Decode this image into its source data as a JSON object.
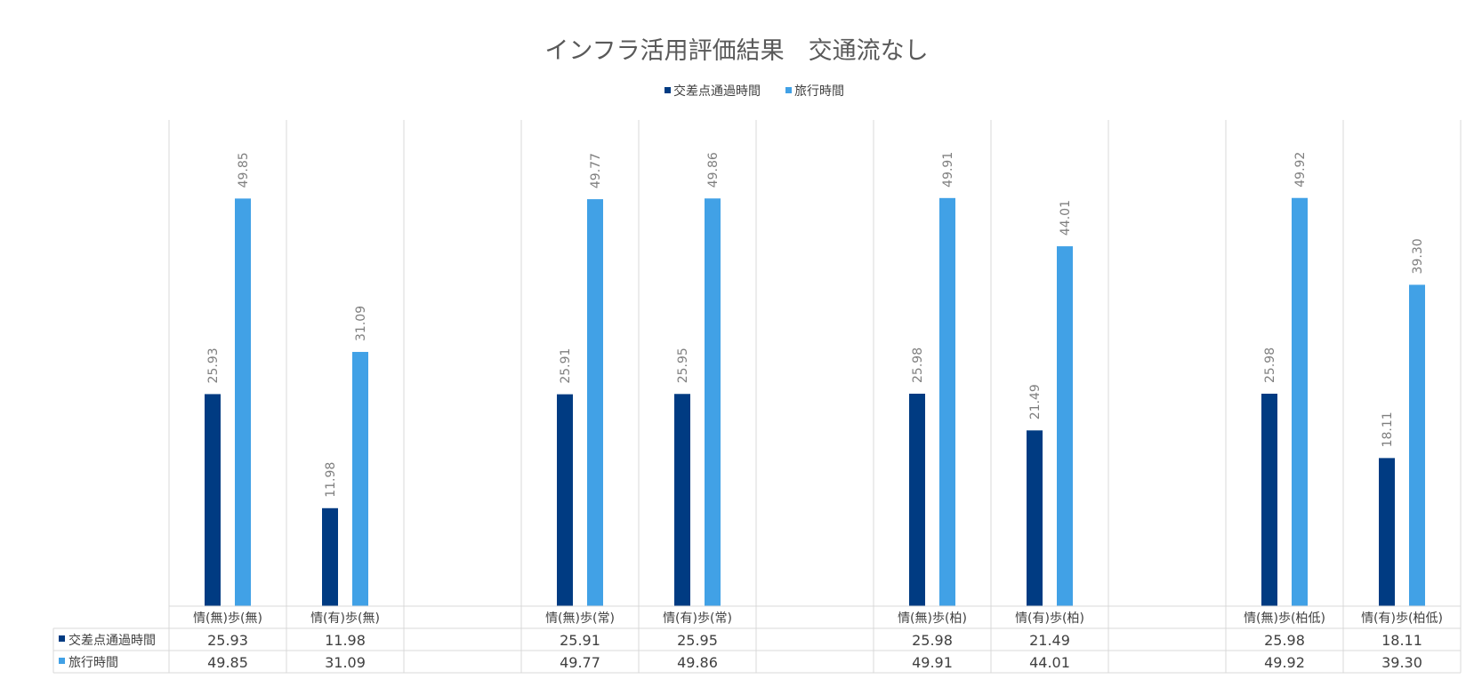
{
  "chart_data": {
    "type": "bar",
    "title": "インフラ活用評価結果　交通流なし",
    "legend_position": "top",
    "data_table": true,
    "categories": [
      "情(無)歩(無)",
      "情(有)歩(無)",
      "",
      "情(無)歩(常)",
      "情(有)歩(常)",
      "",
      "情(無)歩(柏)",
      "情(有)歩(柏)",
      "",
      "情(無)歩(柏低)",
      "情(有)歩(柏低)"
    ],
    "series": [
      {
        "name": "交差点通過時間",
        "color": "#003b82",
        "values": [
          25.93,
          11.98,
          null,
          25.91,
          25.95,
          null,
          25.98,
          21.49,
          null,
          25.98,
          18.11
        ]
      },
      {
        "name": "旅行時間",
        "color": "#41a1e6",
        "values": [
          49.85,
          31.09,
          null,
          49.77,
          49.86,
          null,
          49.91,
          44.01,
          null,
          49.92,
          39.3
        ]
      }
    ],
    "ylim": [
      0,
      60
    ],
    "value_format": 2
  }
}
